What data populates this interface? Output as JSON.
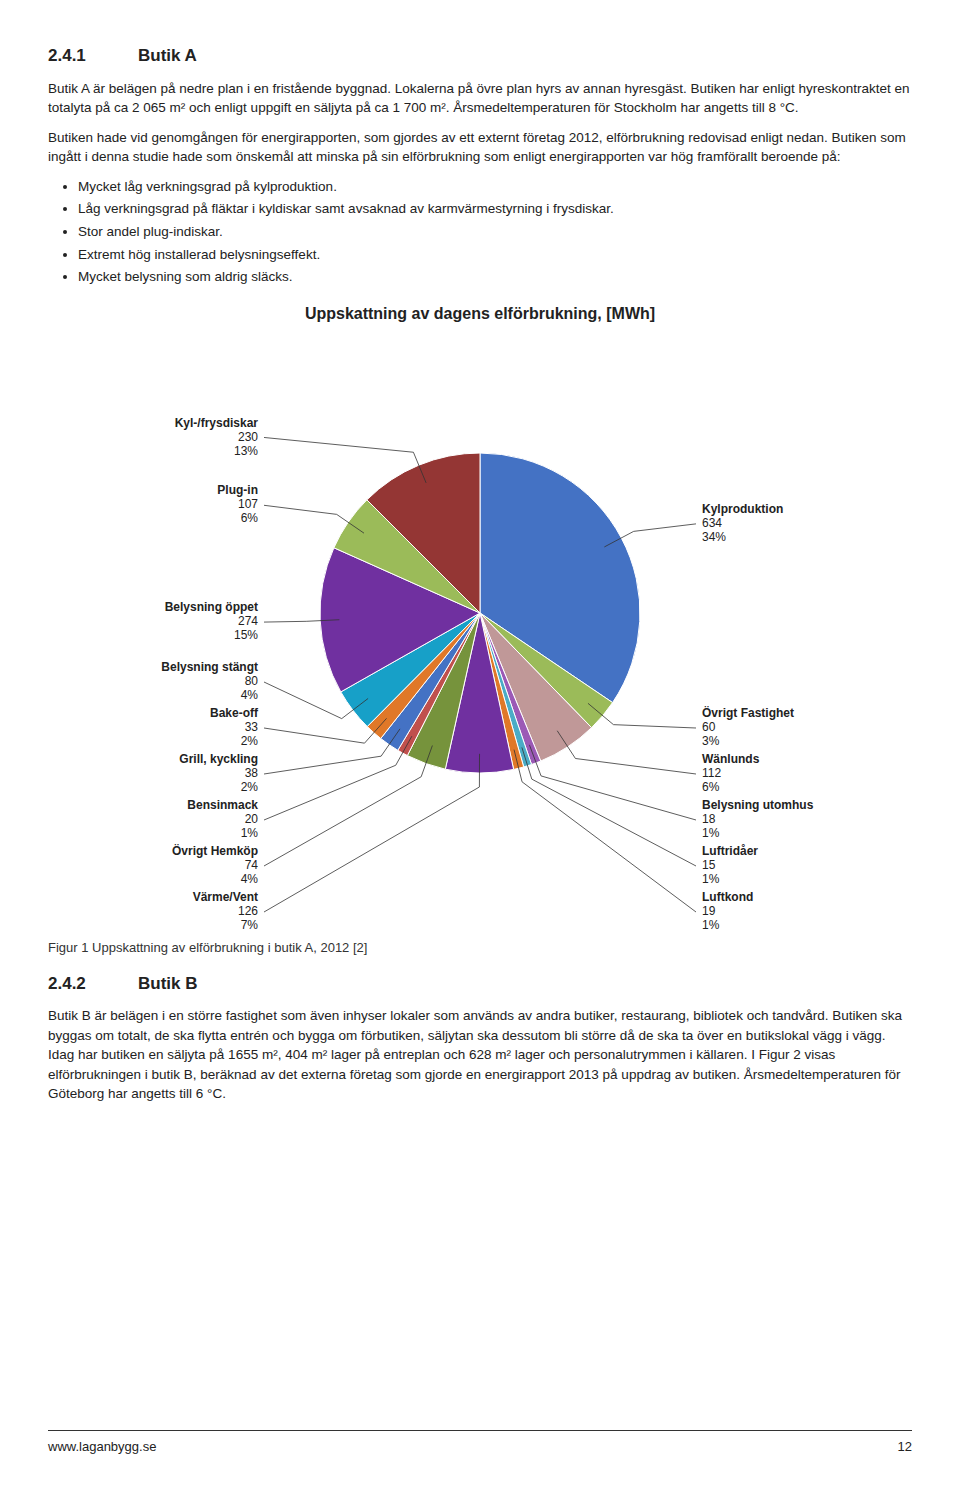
{
  "page": {
    "sections": [
      {
        "number": "2.4.1",
        "title": "Butik A",
        "paragraphs": [
          "Butik A är belägen på nedre plan i en fristående byggnad. Lokalerna på övre plan hyrs av annan hyresgäst. Butiken har enligt hyreskontraktet en totalyta på ca 2 065 m² och enligt uppgift en säljyta på ca 1 700 m². Årsmedeltemperaturen för Stockholm har angetts till 8 °C.",
          "Butiken hade vid genomgången för energirapporten, som gjordes av ett externt företag 2012, elförbrukning redovisad enligt nedan. Butiken som ingått i denna studie hade som önskemål att minska på sin elförbrukning som enligt energirapporten var hög framförallt beroende på:"
        ],
        "bullets": [
          "Mycket låg verkningsgrad på kylproduktion.",
          "Låg verkningsgrad på fläktar i kyldiskar samt avsaknad av karmvärmestyrning i frysdiskar.",
          "Stor andel plug-indiskar.",
          "Extremt hög installerad belysningseffekt.",
          "Mycket belysning som aldrig släcks."
        ]
      },
      {
        "number": "2.4.2",
        "title": "Butik B",
        "paragraphs": [
          "Butik B är belägen i en större fastighet som även inhyser lokaler som används av andra butiker, restaurang, bibliotek och tandvård. Butiken ska byggas om totalt, de ska flytta entrén och bygga om förbutiken, säljytan ska dessutom bli större då de ska ta över en butikslokal vägg i vägg. Idag har butiken en säljyta på 1655 m², 404 m² lager på entreplan och 628 m² lager och personalutrymmen i källaren. I Figur 2 visas elförbrukningen i butik B, beräknad av det externa företag som gjorde en energirapport 2013 på uppdrag av butiken. Årsmedeltemperaturen för Göteborg har angetts till 6 °C."
        ],
        "bullets": []
      }
    ],
    "figure_caption": "Figur 1 Uppskattning av elförbrukning i butik A, 2012 [2]",
    "footer_text": "www.laganbygg.se",
    "page_number": "12"
  },
  "chart_data": {
    "type": "pie",
    "title": "Uppskattning av dagens elförbrukning, [MWh]",
    "categories": [
      "Kylproduktion",
      "Övrigt Fastighet",
      "Wänlunds",
      "Belysning utomhus",
      "Luftridåer",
      "Luftkond",
      "Värme/Vent",
      "Övrigt Hemköp",
      "Bensinmack",
      "Grill, kyckling",
      "Bake-off",
      "Belysning stängt",
      "Belysning öppet",
      "Plug-in",
      "Kyl-/frysdiskar"
    ],
    "values": [
      634,
      60,
      112,
      18,
      15,
      19,
      126,
      74,
      20,
      38,
      33,
      80,
      274,
      107,
      230
    ],
    "percent_labels": [
      "34%",
      "3%",
      "6%",
      "1%",
      "1%",
      "1%",
      "7%",
      "4%",
      "1%",
      "2%",
      "2%",
      "4%",
      "15%",
      "6%",
      "13%"
    ],
    "colors": [
      "#4472C4",
      "#9BBB59",
      "#C09898",
      "#9B59B6",
      "#4BACC6",
      "#E07828",
      "#7030A0",
      "#76933C",
      "#C0504D",
      "#4472C4",
      "#E07828",
      "#17A0C8",
      "#7030A0",
      "#9BBB59",
      "#943634"
    ],
    "data_labels": true
  }
}
